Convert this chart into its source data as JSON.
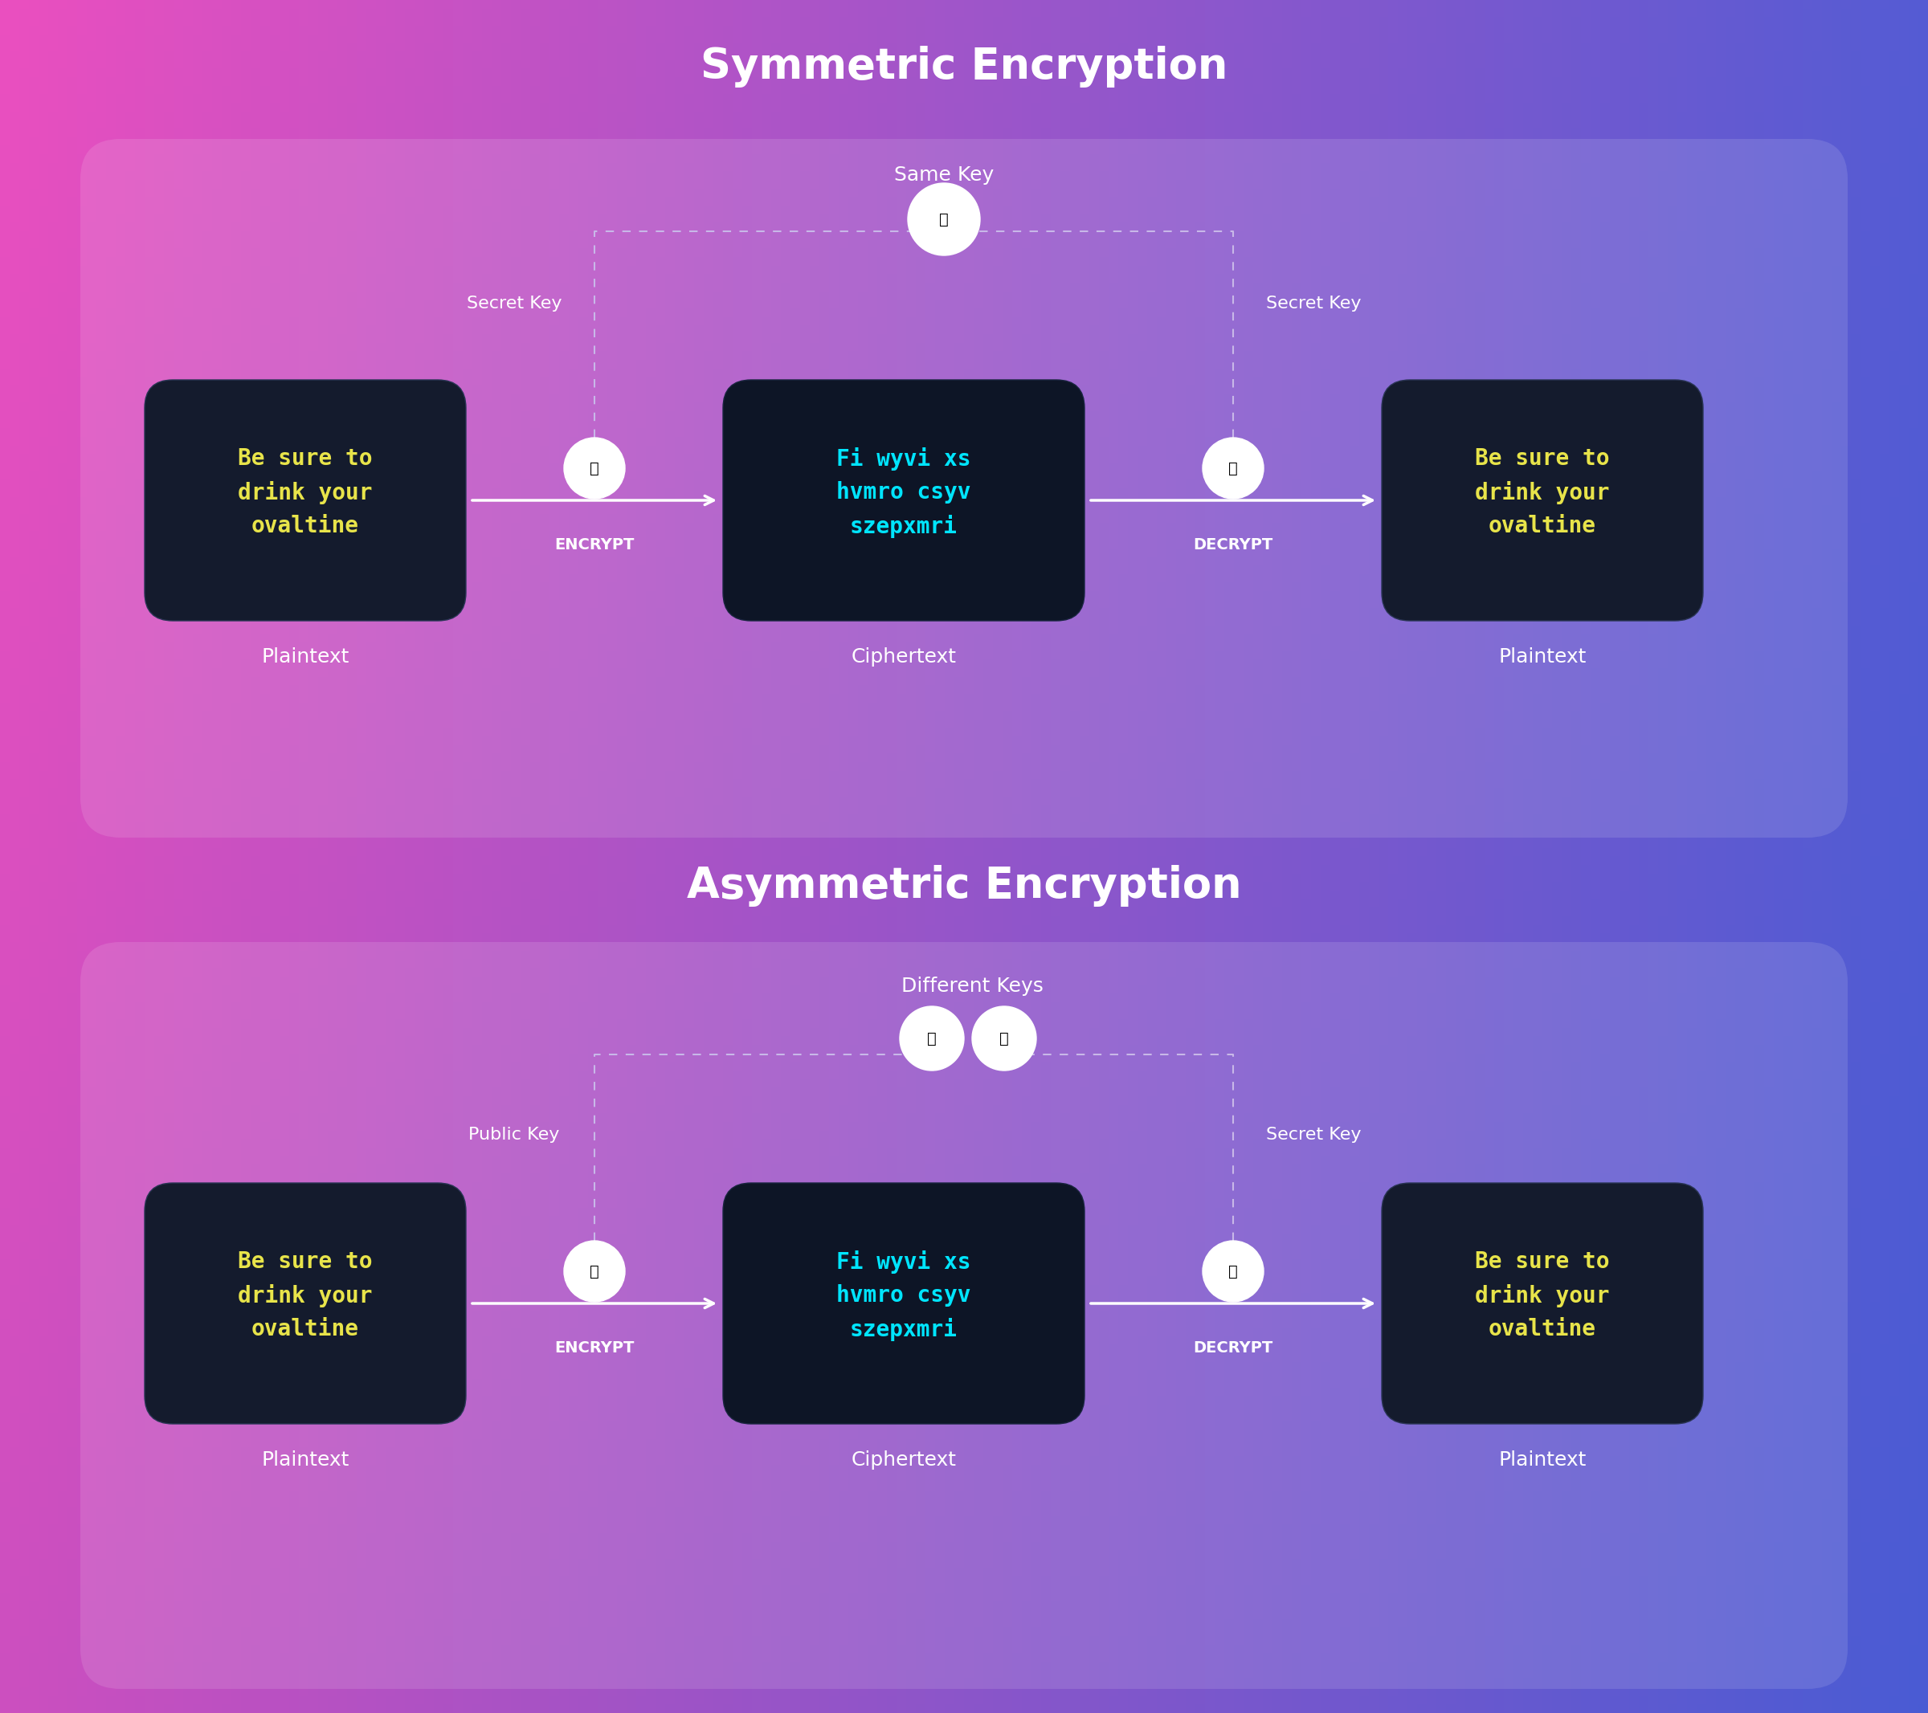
{
  "title_symmetric": "Symmetric Encryption",
  "title_asymmetric": "Asymmetric Encryption",
  "plaintext_label": "Plaintext",
  "ciphertext_label": "Ciphertext",
  "encrypt_label": "ENCRYPT",
  "decrypt_label": "DECRYPT",
  "same_key_label": "Same Key",
  "different_keys_label": "Different Keys",
  "secret_key_label": "Secret Key",
  "public_key_label": "Public Key",
  "plaintext_content": "Be sure to\ndrink your\novaltine",
  "ciphertext_content": "Fi wyvi xs\nhvmro csyv\nszepxmri",
  "bg_gradient_left": "#9b4fc0",
  "bg_gradient_right": "#4a5bd4",
  "panel_bg": "rgba(255,255,255,0.1)",
  "box_dark": "#141b2d",
  "box_border": "#252f4a",
  "plaintext_color": "#e8e44a",
  "ciphertext_color": "#00e5ff",
  "white_color": "#ffffff",
  "key_circle_color": "#ffffff",
  "key_icon_color": "#7c5cbf",
  "key_icon_pink": "#e91e8c",
  "arrow_color": "#ffffff",
  "dashed_line_color": "#c8b8e8",
  "title_fontsize": 38,
  "label_fontsize": 18,
  "content_fontsize": 20,
  "encrypt_fontsize": 14
}
